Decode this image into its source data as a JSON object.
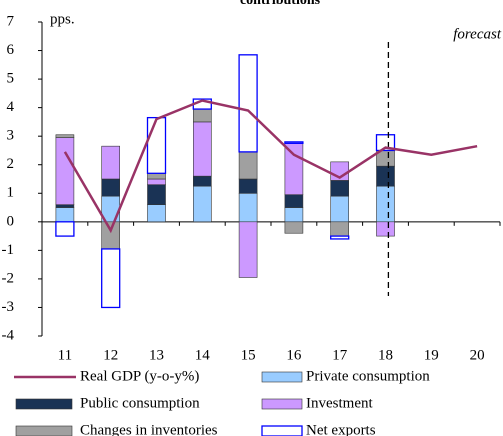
{
  "chart_data": {
    "type": "bar",
    "title": "contributions",
    "y_label": "pps.",
    "annotation": "forecast",
    "categories": [
      "11",
      "12",
      "13",
      "14",
      "15",
      "16",
      "17",
      "18",
      "19",
      "20"
    ],
    "ylim": [
      -4,
      7
    ],
    "yticks": [
      -4,
      -3,
      -2,
      -1,
      0,
      1,
      2,
      3,
      4,
      5,
      6,
      7
    ],
    "series": [
      {
        "name": "Real GDP (y-o-y%)",
        "type": "line",
        "color": "#993366",
        "values": [
          2.45,
          -0.3,
          3.6,
          4.25,
          3.9,
          2.35,
          1.55,
          2.6,
          2.35,
          2.65
        ]
      },
      {
        "name": "Private consumption",
        "color": "#99ccff",
        "values": [
          0.5,
          0.9,
          0.6,
          1.25,
          1.0,
          0.5,
          0.9,
          1.25,
          null,
          null
        ]
      },
      {
        "name": "Public consumption",
        "color": "#1a3355",
        "values": [
          0.1,
          0.6,
          0.7,
          0.35,
          0.5,
          0.45,
          0.55,
          0.7,
          null,
          null
        ]
      },
      {
        "name": "Investment",
        "color": "#cc99ff",
        "values": [
          2.35,
          1.15,
          0.2,
          1.9,
          -1.95,
          1.8,
          0.65,
          -0.5,
          null,
          null
        ]
      },
      {
        "name": "Changes in inventories",
        "color": "#a0a0a0",
        "values": [
          0.1,
          -0.95,
          0.2,
          0.45,
          0.95,
          -0.4,
          -0.5,
          0.55,
          null,
          null
        ]
      },
      {
        "name": "Net exports",
        "color": "#0000ff",
        "fill": "#ffffff",
        "values": [
          -0.5,
          -2.05,
          1.95,
          0.35,
          3.4,
          0.05,
          -0.1,
          0.55,
          null,
          null
        ]
      }
    ]
  }
}
